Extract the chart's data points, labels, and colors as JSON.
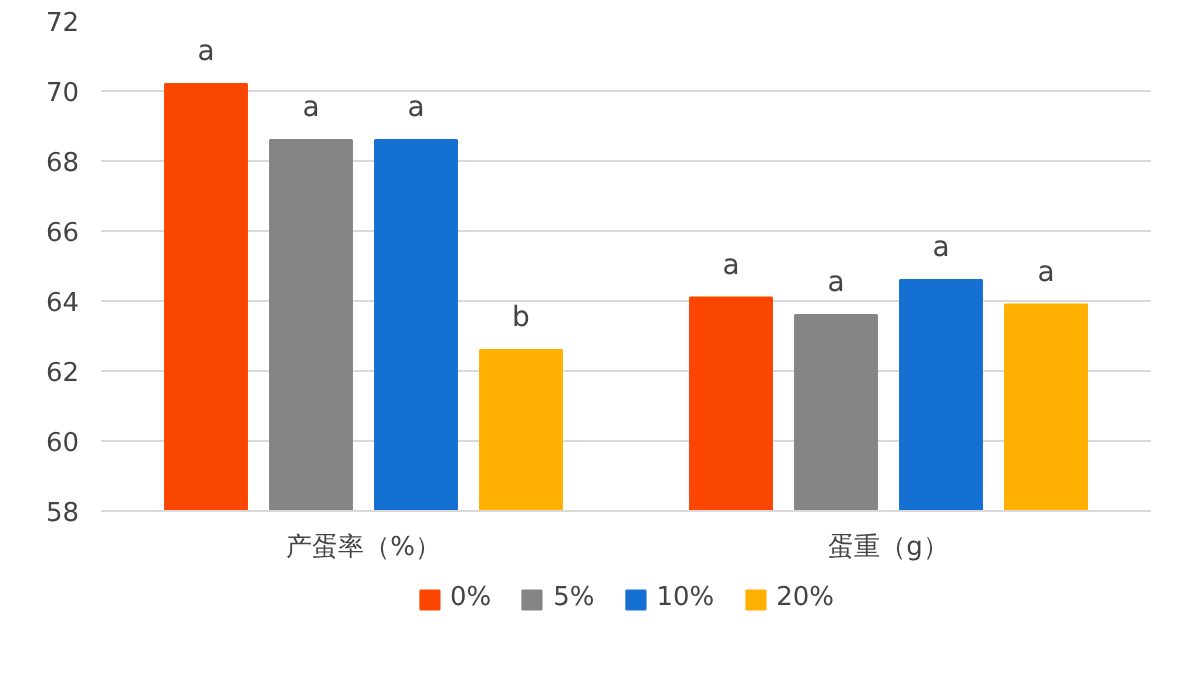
{
  "chart_data": {
    "type": "bar",
    "categories": [
      "产蛋率（%）",
      "蛋重（g）"
    ],
    "series": [
      {
        "name": "0%",
        "color": "#fa4600",
        "values": [
          70.2,
          64.1
        ],
        "value_labels": [
          "a",
          "a"
        ]
      },
      {
        "name": "5%",
        "color": "#858585",
        "values": [
          68.6,
          63.6
        ],
        "value_labels": [
          "a",
          "a"
        ]
      },
      {
        "name": "10%",
        "color": "#1470d2",
        "values": [
          68.6,
          64.6
        ],
        "value_labels": [
          "a",
          "a"
        ]
      },
      {
        "name": "20%",
        "color": "#ffb000",
        "values": [
          62.6,
          63.9
        ],
        "value_labels": [
          "b",
          "a"
        ]
      }
    ],
    "ylim": [
      58,
      72
    ],
    "yticks": [
      58,
      60,
      62,
      64,
      66,
      68,
      70,
      72
    ],
    "grid": "y",
    "legend": "bottom"
  }
}
